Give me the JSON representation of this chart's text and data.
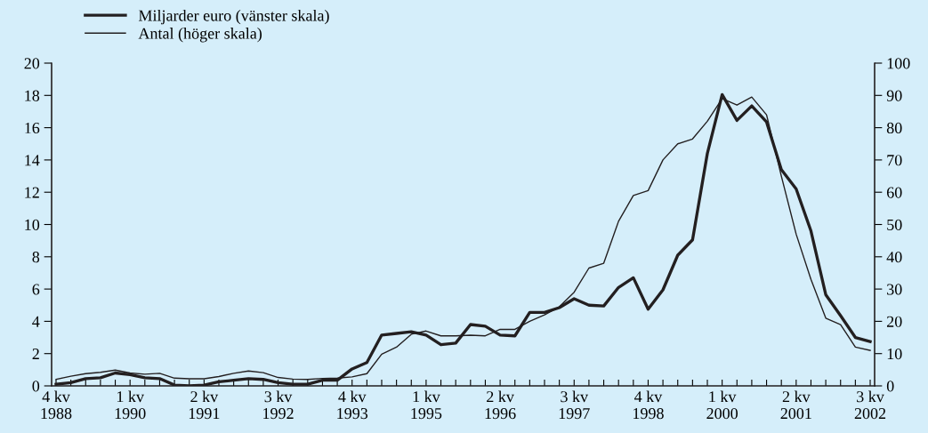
{
  "chart_data": {
    "type": "line",
    "categories": [
      "4 kv\n1988",
      null,
      null,
      null,
      null,
      "1 kv\n1990",
      null,
      null,
      null,
      null,
      "2 kv\n1991",
      null,
      null,
      null,
      null,
      "3 kv\n1992",
      null,
      null,
      null,
      null,
      "4 kv\n1993",
      null,
      null,
      null,
      null,
      "1 kv\n1995",
      null,
      null,
      null,
      null,
      "2 kv\n1996",
      null,
      null,
      null,
      null,
      "3 kv\n1997",
      null,
      null,
      null,
      null,
      "4 kv\n1998",
      null,
      null,
      null,
      null,
      "1 kv\n2000",
      null,
      null,
      null,
      null,
      "2 kv\n2001",
      null,
      null,
      null,
      null,
      "3 kv\n2002"
    ],
    "series": [
      {
        "name": "Miljarder euro (vänster skala)",
        "color": "#231f20",
        "values": [
          0.1,
          0.2,
          0.45,
          0.5,
          0.8,
          0.7,
          0.5,
          0.45,
          0.05,
          0.0,
          0.05,
          0.25,
          0.35,
          0.45,
          0.4,
          0.2,
          0.1,
          0.1,
          0.35,
          0.35,
          1.05,
          1.45,
          3.15,
          3.25,
          3.35,
          3.15,
          2.55,
          2.65,
          3.8,
          3.7,
          3.15,
          3.1,
          4.55,
          4.55,
          4.85,
          5.4,
          5.0,
          4.95,
          6.1,
          6.7,
          4.75,
          5.95,
          8.1,
          9.05,
          14.4,
          18.05,
          16.45,
          17.35,
          16.35,
          13.4,
          12.2,
          9.6,
          5.65,
          4.35,
          3.0,
          2.75
        ]
      },
      {
        "name": "Antal (höger skala)",
        "color": "#231f20",
        "axis": "y2",
        "values": [
          2,
          3,
          3.8,
          4.2,
          4.9,
          4.0,
          3.6,
          3.9,
          2.4,
          2.2,
          2.2,
          2.9,
          3.9,
          4.6,
          4.1,
          2.6,
          2.1,
          2.0,
          2.3,
          2.4,
          2.8,
          3.8,
          9.8,
          12,
          16,
          17,
          15.5,
          15.5,
          15.7,
          15.5,
          17.5,
          17.5,
          20,
          22,
          24.5,
          29,
          36.5,
          38,
          51,
          59,
          60.5,
          70,
          75,
          76.5,
          82,
          89,
          87,
          89.5,
          84,
          65,
          47,
          33,
          21,
          19,
          12,
          11
        ]
      }
    ],
    "ylim": [
      0,
      20
    ],
    "yticks": [
      0,
      2,
      4,
      6,
      8,
      10,
      12,
      14,
      16,
      18,
      20
    ],
    "y2lim": [
      0,
      100
    ],
    "y2ticks": [
      0,
      10,
      20,
      30,
      40,
      50,
      60,
      70,
      80,
      90,
      100
    ],
    "grid": false,
    "legend": "top left",
    "marker": "none",
    "line_style": "solid"
  }
}
